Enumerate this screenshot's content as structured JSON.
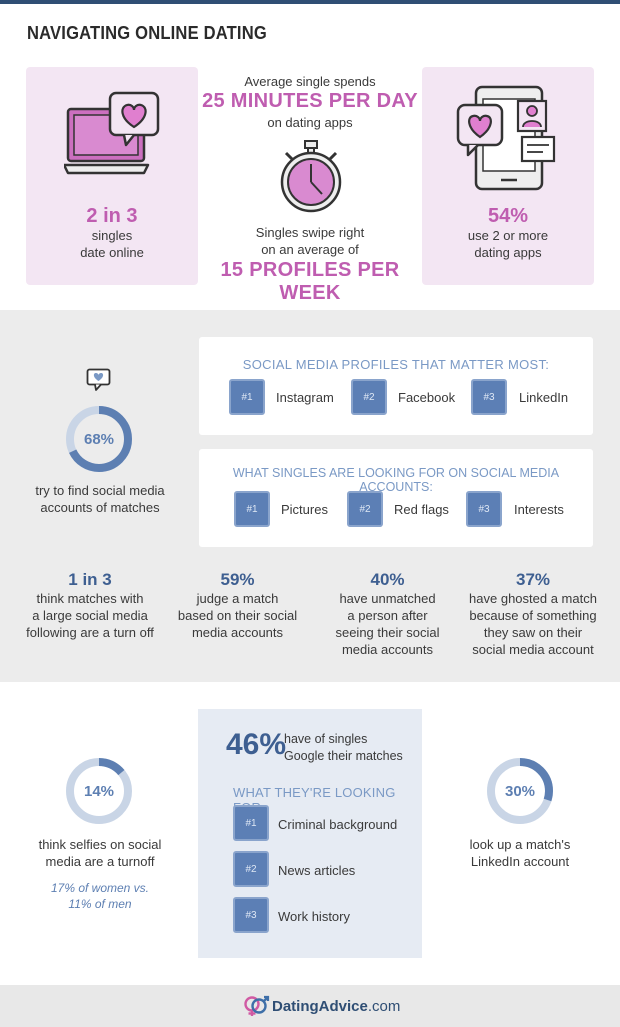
{
  "header": {
    "title": "NAVIGATING ONLINE DATING"
  },
  "section1": {
    "left": {
      "stat": "2 in 3",
      "line1": "singles",
      "line2": "date online"
    },
    "center": {
      "top_line": "Average single spends",
      "big1": "25 MINUTES PER DAY",
      "sub1": "on dating apps",
      "mid_line1": "Singles swipe right",
      "mid_line2": "on an average of",
      "big2": "15 PROFILES PER WEEK"
    },
    "right": {
      "stat": "54%",
      "line1": "use 2 or more",
      "line2": "dating apps"
    }
  },
  "section2": {
    "ring": {
      "value": "68%",
      "fraction": 0.68,
      "line1": "try to find social media",
      "line2": "accounts of matches"
    },
    "profiles": {
      "heading": "SOCIAL MEDIA PROFILES THAT MATTER MOST:",
      "items": [
        {
          "num": "#1",
          "label": "Instagram"
        },
        {
          "num": "#2",
          "label": "Facebook"
        },
        {
          "num": "#3",
          "label": "LinkedIn"
        }
      ]
    },
    "looking": {
      "heading": "WHAT SINGLES ARE LOOKING FOR ON SOCIAL MEDIA ACCOUNTS:",
      "items": [
        {
          "num": "#1",
          "label": "Pictures"
        },
        {
          "num": "#2",
          "label": "Red flags"
        },
        {
          "num": "#3",
          "label": "Interests"
        }
      ]
    },
    "stats": [
      {
        "value": "1 in 3",
        "lines": [
          "think matches with",
          "a large social media",
          "following are a turn off"
        ]
      },
      {
        "value": "59%",
        "lines": [
          "judge a match",
          "based on their social",
          "media accounts"
        ]
      },
      {
        "value": "40%",
        "lines": [
          "have unmatched",
          "a person after",
          "seeing their social",
          "media accounts"
        ]
      },
      {
        "value": "37%",
        "lines": [
          "have ghosted a match",
          "because of something",
          "they saw on their",
          "social media account"
        ]
      }
    ]
  },
  "section3": {
    "left": {
      "value": "14%",
      "fraction": 0.14,
      "line1": "think selfies on social",
      "line2": "media are a turnoff",
      "note1": "17% of women vs.",
      "note2": "11% of men"
    },
    "center": {
      "value": "46%",
      "line1": "have of singles",
      "line2": "Google their matches",
      "heading": "WHAT THEY'RE LOOKING FOR:",
      "items": [
        {
          "num": "#1",
          "label": "Criminal background"
        },
        {
          "num": "#2",
          "label": "News articles"
        },
        {
          "num": "#3",
          "label": "Work history"
        }
      ]
    },
    "right": {
      "value": "30%",
      "fraction": 0.3,
      "line1": "look up a match's",
      "line2": "LinkedIn account"
    }
  },
  "footer": {
    "brand": "DatingAdvice",
    "tld": ".com"
  },
  "colors": {
    "pink": "#bf5db0",
    "blue": "#3e5f91",
    "lightblue": "#7a99c5",
    "pinkbg": "#f3e6f3"
  }
}
